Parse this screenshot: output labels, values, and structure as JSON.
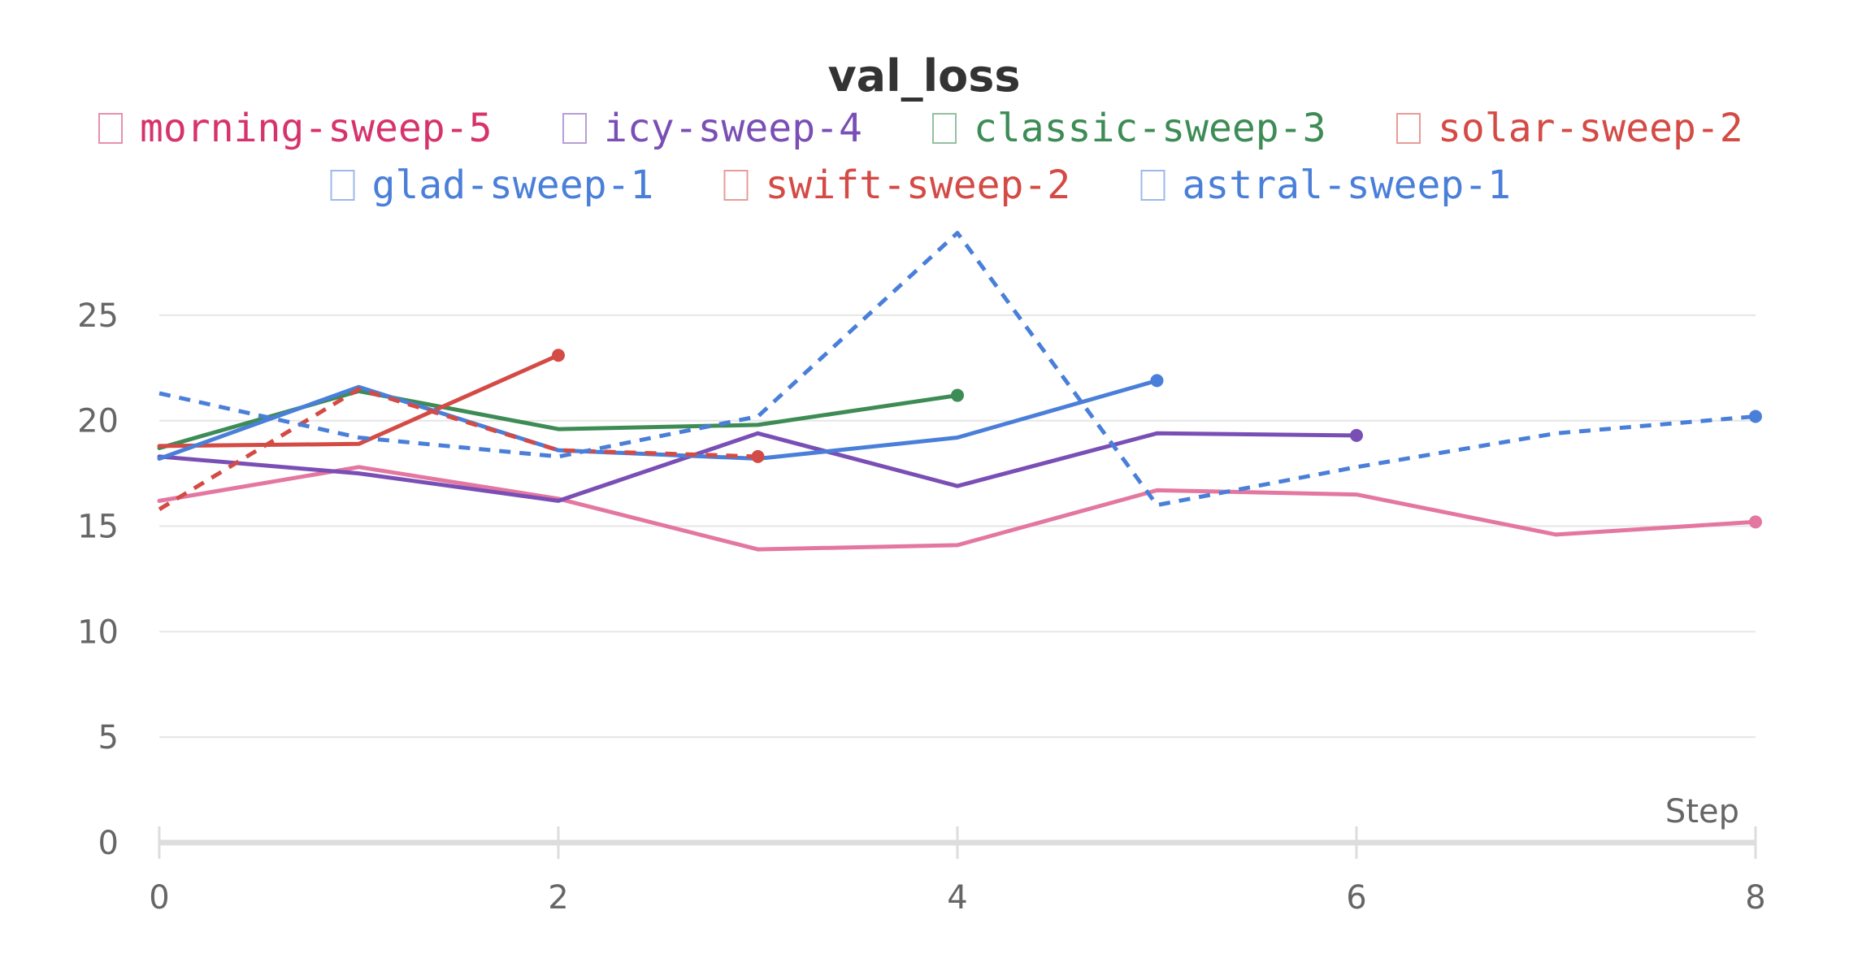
{
  "chart_data": {
    "type": "line",
    "title": "val_loss",
    "xlabel": "Step",
    "ylabel": "",
    "xlim": [
      0,
      8
    ],
    "ylim": [
      0,
      28
    ],
    "x_ticks": [
      "0",
      "2",
      "4",
      "6",
      "8"
    ],
    "y_ticks": [
      "0",
      "5",
      "10",
      "15",
      "20",
      "25"
    ],
    "grid": true,
    "legend_position": "top",
    "series": [
      {
        "name": "morning-sweep-5",
        "color": "#e377a0",
        "legend_color": "#d6336c",
        "dash": false,
        "x": [
          0,
          1,
          2,
          3,
          4,
          5,
          6,
          7,
          8
        ],
        "y": [
          16.2,
          17.8,
          16.3,
          13.9,
          14.1,
          16.7,
          16.5,
          14.6,
          15.2
        ]
      },
      {
        "name": "icy-sweep-4",
        "color": "#7a4fb5",
        "legend_color": "#7a4fb5",
        "dash": false,
        "x": [
          0,
          1,
          2,
          3,
          4,
          5,
          6
        ],
        "y": [
          18.3,
          17.5,
          16.2,
          19.4,
          16.9,
          19.4,
          19.3
        ]
      },
      {
        "name": "classic-sweep-3",
        "color": "#3d8b55",
        "legend_color": "#3d8b55",
        "dash": false,
        "x": [
          0,
          1,
          2,
          3,
          4
        ],
        "y": [
          18.7,
          21.4,
          19.6,
          19.8,
          21.2
        ]
      },
      {
        "name": "solar-sweep-2",
        "color": "#d44a45",
        "legend_color": "#d44a45",
        "dash": false,
        "x": [
          0,
          1,
          2
        ],
        "y": [
          18.8,
          18.9,
          23.1
        ]
      },
      {
        "name": "glad-sweep-1",
        "color": "#4a7fd9",
        "legend_color": "#4a7fd9",
        "dash": false,
        "x": [
          0,
          1,
          2,
          3,
          4,
          5
        ],
        "y": [
          18.2,
          21.6,
          18.6,
          18.2,
          19.2,
          21.9
        ]
      },
      {
        "name": "swift-sweep-2",
        "color": "#d44a45",
        "legend_color": "#d44a45",
        "dash": true,
        "x": [
          0,
          1,
          2,
          3
        ],
        "y": [
          15.8,
          21.5,
          18.6,
          18.3
        ]
      },
      {
        "name": "astral-sweep-1",
        "color": "#4a7fd9",
        "legend_color": "#4a7fd9",
        "dash": true,
        "x": [
          0,
          1,
          2,
          3,
          4,
          5,
          6,
          7,
          8
        ],
        "y": [
          21.3,
          19.2,
          18.3,
          20.2,
          28.9,
          16.0,
          17.8,
          19.4,
          20.2
        ]
      }
    ]
  }
}
